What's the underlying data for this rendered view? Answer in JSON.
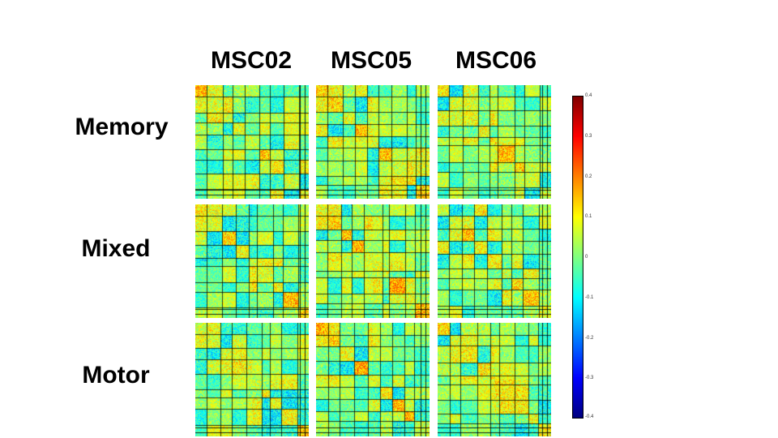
{
  "chart_data": {
    "type": "heatmap",
    "columns": [
      "MSC02",
      "MSC05",
      "MSC06"
    ],
    "rows": [
      "Memory",
      "Mixed",
      "Motor"
    ],
    "colorbar": {
      "range": [
        -0.4,
        0.4
      ],
      "ticks": [
        "0.4",
        "0.3",
        "0.2",
        "0.1",
        "0",
        "-0.1",
        "-0.2",
        "-0.3",
        "-0.4"
      ],
      "colormap": "jet"
    }
  }
}
